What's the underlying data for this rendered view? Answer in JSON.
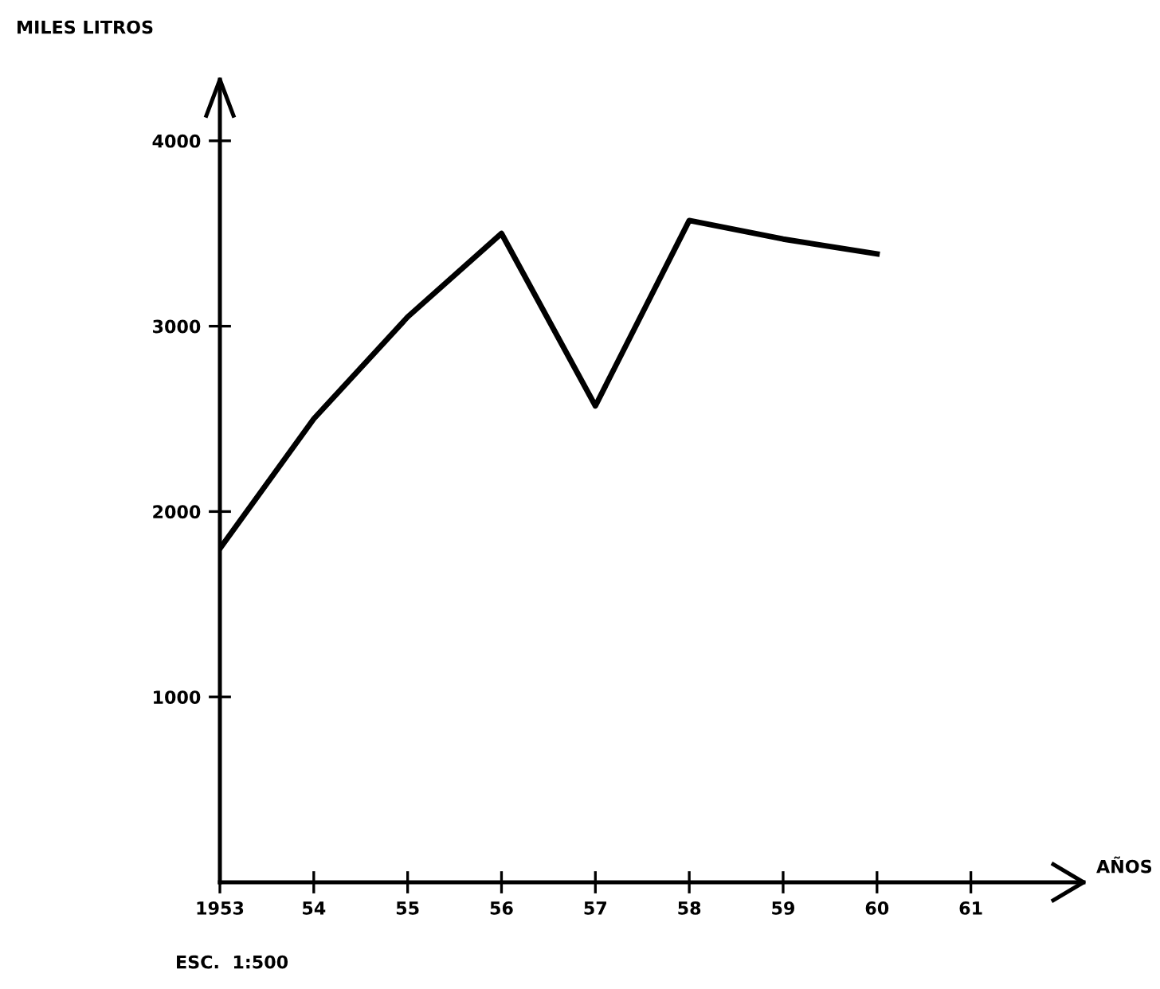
{
  "chart_data": {
    "type": "line",
    "ylabel": "MILES LITROS",
    "xlabel": "AÑOS",
    "x": [
      1953,
      1954,
      1955,
      1956,
      1957,
      1958,
      1959,
      1960
    ],
    "series": [
      {
        "color": "#000000",
        "values": [
          1800,
          2500,
          3050,
          3500,
          2570,
          3570,
          3470,
          3390
        ]
      }
    ],
    "xlim": [
      1953,
      1962.2
    ],
    "xticks": [
      {
        "value": 1953,
        "label": "1953"
      },
      {
        "value": 1954,
        "label": "54"
      },
      {
        "value": 1955,
        "label": "55"
      },
      {
        "value": 1956,
        "label": "56"
      },
      {
        "value": 1957,
        "label": "57"
      },
      {
        "value": 1958,
        "label": "58"
      },
      {
        "value": 1959,
        "label": "59"
      },
      {
        "value": 1960,
        "label": "60"
      },
      {
        "value": 1961,
        "label": "61"
      }
    ],
    "ylim": [
      0,
      4330
    ],
    "yticks": [
      1000,
      2000,
      3000,
      4000
    ],
    "annotations": [
      "ESC.  1:500"
    ],
    "grid": false,
    "marker": "none",
    "line_style": "solid"
  }
}
